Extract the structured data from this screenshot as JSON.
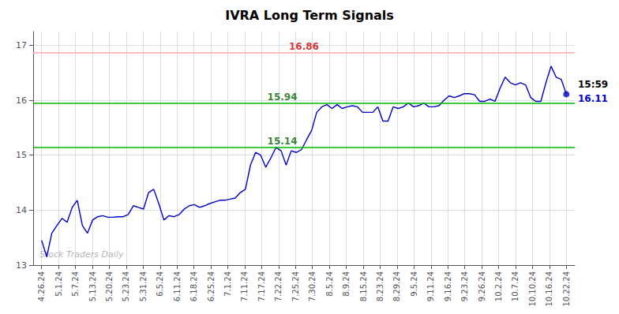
{
  "chart_data": {
    "type": "line",
    "title": "IVRA Long Term Signals",
    "x": [
      0,
      0.301,
      0.6019,
      0.9029,
      1.2039,
      1.5049,
      1.8058,
      2.1068,
      2.4078,
      2.7087,
      3.0097,
      3.3107,
      3.6117,
      3.9126,
      4.2136,
      4.5146,
      4.8155,
      5.1165,
      5.4175,
      5.7184,
      6.0194,
      6.3204,
      6.6214,
      6.9223,
      7.2233,
      7.5243,
      7.8252,
      8.1262,
      8.4272,
      8.7282,
      9.0291,
      9.3301,
      9.6311,
      9.932,
      10.233,
      10.534,
      10.835,
      11.1359,
      11.4369,
      11.7379,
      12.0388,
      12.3398,
      12.6408,
      12.9417,
      13.2427,
      13.5437,
      13.8447,
      14.1456,
      14.4466,
      14.7476,
      15.0485,
      15.3495,
      15.6505,
      15.9515,
      16.2524,
      16.5534,
      16.8544,
      17.1553,
      17.4563,
      17.7573,
      18.0583,
      18.3592,
      18.6602,
      18.9612,
      19.2621,
      19.5631,
      19.8641,
      20.165,
      20.466,
      20.767,
      21.068,
      21.3689,
      21.6699,
      21.9709,
      22.2718,
      22.5728,
      22.8738,
      23.1748,
      23.4757,
      23.7767,
      24.0777,
      24.3786,
      24.6796,
      24.9806,
      25.2816,
      25.5825,
      25.8835,
      26.1845,
      26.4854,
      26.7864,
      27.0874,
      27.3883,
      27.6893,
      27.9903,
      28.2913,
      28.5922,
      28.8932,
      29.1942,
      29.4951,
      29.7961,
      30.0971,
      30.3981,
      30.699,
      31
    ],
    "values": [
      13.45,
      13.15,
      13.58,
      13.72,
      13.85,
      13.78,
      14.05,
      14.18,
      13.72,
      13.58,
      13.82,
      13.88,
      13.9,
      13.87,
      13.87,
      13.88,
      13.88,
      13.92,
      14.08,
      14.05,
      14.02,
      14.32,
      14.38,
      14.12,
      13.82,
      13.9,
      13.88,
      13.92,
      14.02,
      14.08,
      14.1,
      14.05,
      14.08,
      14.12,
      14.15,
      14.18,
      14.18,
      14.2,
      14.22,
      14.32,
      14.38,
      14.82,
      15.05,
      15.0,
      14.78,
      14.95,
      15.14,
      15.08,
      14.82,
      15.08,
      15.05,
      15.1,
      15.28,
      15.45,
      15.78,
      15.88,
      15.92,
      15.85,
      15.92,
      15.85,
      15.88,
      15.9,
      15.88,
      15.78,
      15.78,
      15.78,
      15.88,
      15.62,
      15.62,
      15.88,
      15.85,
      15.88,
      15.95,
      15.88,
      15.9,
      15.95,
      15.88,
      15.88,
      15.9,
      16.0,
      16.08,
      16.05,
      16.08,
      16.12,
      16.12,
      16.1,
      15.98,
      15.98,
      16.02,
      15.98,
      16.22,
      16.42,
      16.32,
      16.28,
      16.32,
      16.28,
      16.05,
      15.98,
      15.98,
      16.32,
      16.62,
      16.42,
      16.38,
      16.11
    ],
    "color": "#0000cc",
    "xlim": [
      -0.5,
      31.5
    ],
    "xticks": [
      {
        "value": 0,
        "label": "4.26.24"
      },
      {
        "value": 1,
        "label": "5.1.24"
      },
      {
        "value": 2,
        "label": "5.7.24"
      },
      {
        "value": 3,
        "label": "5.13.24"
      },
      {
        "value": 4,
        "label": "5.20.24"
      },
      {
        "value": 5,
        "label": "5.23.24"
      },
      {
        "value": 6,
        "label": "5.31.24"
      },
      {
        "value": 7,
        "label": "6.5.24"
      },
      {
        "value": 8,
        "label": "6.11.24"
      },
      {
        "value": 9,
        "label": "6.18.24"
      },
      {
        "value": 10,
        "label": "6.25.24"
      },
      {
        "value": 11,
        "label": "7.1.24"
      },
      {
        "value": 12,
        "label": "7.11.24"
      },
      {
        "value": 13,
        "label": "7.17.24"
      },
      {
        "value": 14,
        "label": "7.22.24"
      },
      {
        "value": 15,
        "label": "7.25.24"
      },
      {
        "value": 16,
        "label": "7.30.24"
      },
      {
        "value": 17,
        "label": "8.5.24"
      },
      {
        "value": 18,
        "label": "8.9.24"
      },
      {
        "value": 19,
        "label": "8.15.24"
      },
      {
        "value": 20,
        "label": "8.23.24"
      },
      {
        "value": 21,
        "label": "8.29.24"
      },
      {
        "value": 22,
        "label": "9.5.24"
      },
      {
        "value": 23,
        "label": "9.11.24"
      },
      {
        "value": 24,
        "label": "9.16.24"
      },
      {
        "value": 25,
        "label": "9.23.24"
      },
      {
        "value": 26,
        "label": "9.26.24"
      },
      {
        "value": 27,
        "label": "10.2.24"
      },
      {
        "value": 28,
        "label": "10.7.24"
      },
      {
        "value": 29,
        "label": "10.10.24"
      },
      {
        "value": 30,
        "label": "10.16.24"
      },
      {
        "value": 31,
        "label": "10.22.24"
      }
    ],
    "ylim": [
      13.0,
      17.25
    ],
    "yticks": [
      13,
      14,
      15,
      16,
      17
    ],
    "grid": true,
    "hlines": [
      {
        "y": 16.86,
        "color": "#ffaaaa",
        "text": "16.86",
        "text_color": "#cc0000"
      },
      {
        "y": 15.94,
        "color": "#00bb00",
        "text": "15.94",
        "text_color": "#006600"
      },
      {
        "y": 15.14,
        "color": "#00bb00",
        "text": "15.14",
        "text_color": "#006600"
      }
    ],
    "end_labels": [
      {
        "text": "15:59",
        "color": "#000000"
      },
      {
        "text": "16.11",
        "color": "#0000cc"
      }
    ],
    "watermark": "Stock Traders Daily"
  }
}
